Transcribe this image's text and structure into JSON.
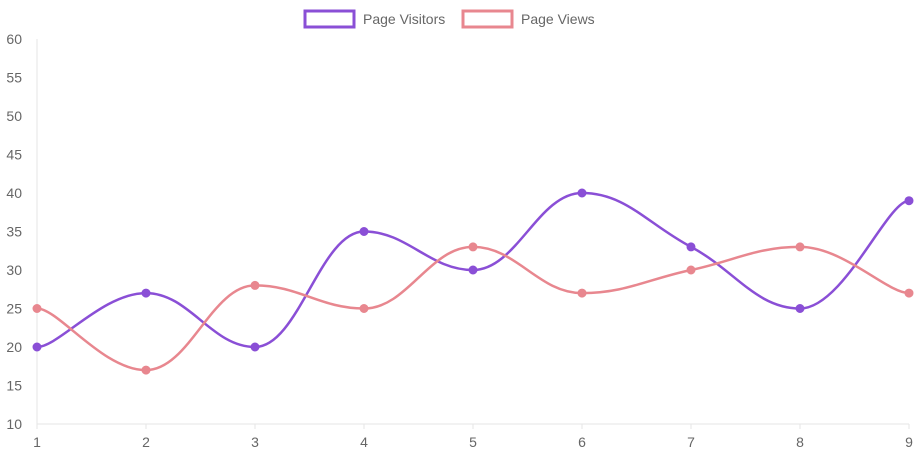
{
  "chart_data": {
    "type": "line",
    "x": [
      1,
      2,
      3,
      4,
      5,
      6,
      7,
      8,
      9
    ],
    "ylim": [
      10,
      60
    ],
    "yticks": [
      10,
      15,
      20,
      25,
      30,
      35,
      40,
      45,
      50,
      55,
      60
    ],
    "grid": false,
    "legend_position": "top-center",
    "series": [
      {
        "name": "Page Visitors",
        "color": "#8a4fd6",
        "values": [
          20,
          27,
          20,
          35,
          30,
          40,
          33,
          25,
          39
        ]
      },
      {
        "name": "Page Views",
        "color": "#e8878f",
        "values": [
          25,
          17,
          28,
          25,
          33,
          27,
          30,
          33,
          27
        ]
      }
    ]
  }
}
